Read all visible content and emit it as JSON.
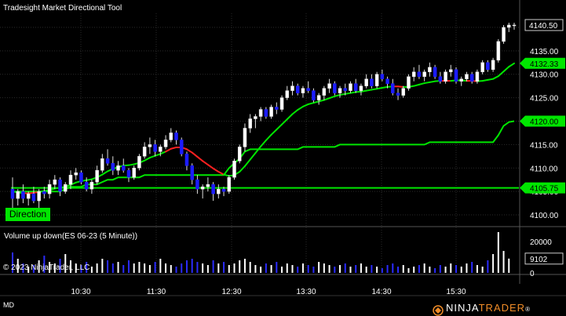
{
  "window": {
    "title": "Tradesight Market Directional Tool",
    "bottom_left": "MD"
  },
  "branding": {
    "copyright": "© 2023 NinjaTrader, LLC",
    "logo_text_1": "NINJA",
    "logo_text_2": "TRADER",
    "logo_suffix": "®"
  },
  "direction_button": {
    "label": "Direction"
  },
  "colors": {
    "background": "#000000",
    "grid": "#2a2a2a",
    "up_candle": "#ffffff",
    "down_candle": "#1c1cff",
    "trend_up": "#00e600",
    "trend_down": "#ff2020",
    "volume_up": "#ffffff",
    "volume_down": "#2b2bff"
  },
  "price_axis": {
    "ticks": [
      "4140.00",
      "4135.00",
      "4130.00",
      "4125.00",
      "4120.00",
      "4115.00",
      "4110.00",
      "4105.00",
      "4100.00"
    ],
    "last_price": "4140.50",
    "markers": [
      {
        "label": "4132.33",
        "value": 4132.33
      },
      {
        "label": "4120.00",
        "value": 4120.0
      },
      {
        "label": "4105.75",
        "value": 4105.75
      }
    ]
  },
  "volume_panel": {
    "title": "Volume up down(ES 06-23 (5 Minute))",
    "ticks": [
      "20000",
      "10000",
      "0"
    ],
    "last_volume": "9102"
  },
  "time_axis": {
    "labels": [
      "10:30",
      "11:30",
      "12:30",
      "13:30",
      "14:30",
      "15:30"
    ]
  },
  "chart_data": {
    "type": "candlestick",
    "instrument": "ES 06-23",
    "interval": "5 Minute",
    "ylim": [
      4098,
      4143
    ],
    "volume_ylim": [
      0,
      27000
    ],
    "time_labels": [
      "10:30",
      "11:30",
      "12:30",
      "13:30",
      "14:30",
      "15:30"
    ],
    "candles": [
      [
        4105.5,
        4108.0,
        4101.5,
        4103.5
      ],
      [
        4103.5,
        4105.5,
        4102.0,
        4105.0
      ],
      [
        4105.0,
        4106.5,
        4102.5,
        4103.5
      ],
      [
        4103.5,
        4105.0,
        4102.0,
        4104.5
      ],
      [
        4104.5,
        4106.0,
        4102.5,
        4103.0
      ],
      [
        4103.0,
        4105.5,
        4101.0,
        4105.0
      ],
      [
        4105.0,
        4106.0,
        4103.5,
        4104.5
      ],
      [
        4104.5,
        4107.5,
        4103.5,
        4106.5
      ],
      [
        4106.5,
        4108.5,
        4105.5,
        4107.5
      ],
      [
        4107.5,
        4108.0,
        4104.0,
        4105.0
      ],
      [
        4105.0,
        4107.0,
        4104.5,
        4106.5
      ],
      [
        4106.5,
        4109.5,
        4105.5,
        4108.5
      ],
      [
        4108.5,
        4110.0,
        4107.5,
        4109.0
      ],
      [
        4109.0,
        4109.5,
        4106.5,
        4107.0
      ],
      [
        4107.0,
        4108.0,
        4105.0,
        4105.5
      ],
      [
        4105.5,
        4107.5,
        4104.5,
        4107.0
      ],
      [
        4107.0,
        4110.5,
        4106.5,
        4109.5
      ],
      [
        4109.5,
        4113.0,
        4109.0,
        4112.0
      ],
      [
        4112.0,
        4114.0,
        4110.5,
        4111.0
      ],
      [
        4111.0,
        4112.5,
        4108.5,
        4109.5
      ],
      [
        4109.5,
        4111.5,
        4108.5,
        4110.5
      ],
      [
        4110.5,
        4112.0,
        4109.0,
        4109.5
      ],
      [
        4109.5,
        4110.0,
        4107.0,
        4108.0
      ],
      [
        4108.0,
        4110.5,
        4107.5,
        4110.0
      ],
      [
        4110.0,
        4113.0,
        4109.5,
        4112.5
      ],
      [
        4112.5,
        4115.5,
        4112.0,
        4114.5
      ],
      [
        4114.5,
        4116.5,
        4113.0,
        4115.0
      ],
      [
        4115.0,
        4116.0,
        4112.5,
        4113.5
      ],
      [
        4113.5,
        4115.0,
        4112.5,
        4114.5
      ],
      [
        4114.5,
        4117.0,
        4114.0,
        4116.0
      ],
      [
        4116.0,
        4118.5,
        4115.5,
        4117.5
      ],
      [
        4117.5,
        4118.0,
        4115.0,
        4116.0
      ],
      [
        4116.0,
        4116.5,
        4112.5,
        4113.0
      ],
      [
        4113.0,
        4113.5,
        4109.5,
        4110.5
      ],
      [
        4110.5,
        4111.0,
        4106.5,
        4107.5
      ],
      [
        4107.5,
        4108.5,
        4104.5,
        4105.5
      ],
      [
        4105.5,
        4106.5,
        4103.5,
        4106.0
      ],
      [
        4106.0,
        4108.0,
        4105.0,
        4106.5
      ],
      [
        4106.5,
        4107.0,
        4103.0,
        4104.5
      ],
      [
        4104.5,
        4106.5,
        4103.5,
        4105.5
      ],
      [
        4105.5,
        4106.0,
        4104.0,
        4105.0
      ],
      [
        4105.0,
        4108.5,
        4104.5,
        4108.0
      ],
      [
        4108.0,
        4112.0,
        4107.5,
        4111.5
      ],
      [
        4111.5,
        4115.0,
        4111.0,
        4114.5
      ],
      [
        4114.5,
        4119.5,
        4113.5,
        4118.5
      ],
      [
        4118.5,
        4121.5,
        4117.5,
        4120.5
      ],
      [
        4120.5,
        4121.5,
        4118.5,
        4121.0
      ],
      [
        4121.0,
        4123.0,
        4120.0,
        4122.5
      ],
      [
        4122.5,
        4123.0,
        4120.5,
        4121.0
      ],
      [
        4121.0,
        4123.5,
        4120.5,
        4123.0
      ],
      [
        4123.0,
        4124.0,
        4121.5,
        4122.5
      ],
      [
        4122.5,
        4125.5,
        4122.0,
        4125.0
      ],
      [
        4125.0,
        4127.5,
        4124.5,
        4126.5
      ],
      [
        4126.5,
        4128.5,
        4125.5,
        4127.5
      ],
      [
        4127.5,
        4128.0,
        4125.5,
        4126.0
      ],
      [
        4126.0,
        4127.5,
        4125.0,
        4127.0
      ],
      [
        4127.0,
        4128.5,
        4126.0,
        4126.5
      ],
      [
        4126.5,
        4127.0,
        4124.0,
        4124.5
      ],
      [
        4124.5,
        4126.0,
        4123.5,
        4125.5
      ],
      [
        4125.5,
        4127.5,
        4124.5,
        4127.0
      ],
      [
        4127.0,
        4129.0,
        4126.0,
        4128.0
      ],
      [
        4128.0,
        4128.5,
        4125.5,
        4126.0
      ],
      [
        4126.0,
        4127.5,
        4125.0,
        4127.0
      ],
      [
        4127.0,
        4128.0,
        4125.5,
        4126.5
      ],
      [
        4126.5,
        4128.5,
        4126.0,
        4128.0
      ],
      [
        4128.0,
        4129.0,
        4126.0,
        4126.5
      ],
      [
        4126.5,
        4128.0,
        4125.5,
        4127.5
      ],
      [
        4127.5,
        4130.0,
        4127.0,
        4129.0
      ],
      [
        4129.0,
        4130.0,
        4127.0,
        4127.5
      ],
      [
        4127.5,
        4130.5,
        4127.0,
        4130.0
      ],
      [
        4130.0,
        4131.0,
        4128.5,
        4129.0
      ],
      [
        4129.0,
        4129.5,
        4127.0,
        4128.0
      ],
      [
        4128.0,
        4129.0,
        4125.5,
        4126.0
      ],
      [
        4126.0,
        4127.0,
        4124.5,
        4125.5
      ],
      [
        4125.5,
        4127.5,
        4125.0,
        4127.0
      ],
      [
        4127.0,
        4130.0,
        4126.5,
        4129.5
      ],
      [
        4129.5,
        4131.5,
        4128.5,
        4130.5
      ],
      [
        4130.5,
        4132.0,
        4129.0,
        4129.5
      ],
      [
        4129.5,
        4131.0,
        4128.5,
        4130.5
      ],
      [
        4130.5,
        4132.5,
        4129.5,
        4131.5
      ],
      [
        4131.5,
        4132.0,
        4129.0,
        4129.5
      ],
      [
        4129.5,
        4130.5,
        4128.0,
        4128.5
      ],
      [
        4128.5,
        4131.0,
        4128.0,
        4130.5
      ],
      [
        4130.5,
        4132.0,
        4129.5,
        4131.0
      ],
      [
        4131.0,
        4131.5,
        4128.0,
        4128.5
      ],
      [
        4128.5,
        4129.5,
        4127.5,
        4129.0
      ],
      [
        4129.0,
        4130.5,
        4128.5,
        4130.0
      ],
      [
        4130.0,
        4130.5,
        4128.0,
        4128.5
      ],
      [
        4128.5,
        4131.0,
        4128.0,
        4130.5
      ],
      [
        4130.5,
        4133.0,
        4130.0,
        4132.5
      ],
      [
        4132.5,
        4133.0,
        4130.5,
        4131.0
      ],
      [
        4131.0,
        4133.5,
        4130.5,
        4133.0
      ],
      [
        4133.0,
        4137.5,
        4132.5,
        4137.0
      ],
      [
        4137.0,
        4140.5,
        4136.5,
        4140.0
      ],
      [
        4140.0,
        4141.0,
        4139.0,
        4140.5
      ],
      [
        4140.5,
        4141.0,
        4139.5,
        4140.5
      ]
    ],
    "volume": [
      13000,
      9000,
      6000,
      4000,
      5000,
      8000,
      11000,
      7000,
      6000,
      9000,
      12000,
      8000,
      6000,
      5000,
      7000,
      4000,
      6000,
      9000,
      8000,
      6000,
      7000,
      5000,
      8000,
      6000,
      7000,
      6000,
      5000,
      7000,
      9000,
      6000,
      5000,
      4000,
      6000,
      8000,
      9000,
      7000,
      6000,
      5000,
      8000,
      6000,
      7000,
      5000,
      6000,
      8000,
      9000,
      7000,
      5000,
      4000,
      6000,
      5000,
      7000,
      4000,
      6000,
      5000,
      4000,
      6000,
      5000,
      4000,
      7000,
      6000,
      5000,
      4000,
      5000,
      6000,
      4000,
      5000,
      6000,
      4000,
      5000,
      4000,
      3000,
      5000,
      6000,
      4000,
      5000,
      3000,
      4000,
      5000,
      6000,
      4000,
      3000,
      5000,
      4000,
      6000,
      5000,
      4000,
      6000,
      7000,
      5000,
      4000,
      8000,
      12000,
      26000,
      14000,
      9102
    ],
    "trend_line": [
      4105.0,
      4104.8,
      4104.6,
      4104.6,
      4104.7,
      4104.9,
      4105.1,
      4105.3,
      4105.6,
      4105.8,
      4106.0,
      4106.4,
      4106.9,
      4107.2,
      4107.4,
      4107.6,
      4108.0,
      4108.6,
      4109.3,
      4109.8,
      4110.2,
      4110.5,
      4110.6,
      4110.8,
      4111.1,
      4111.6,
      4112.2,
      4112.6,
      4113.0,
      4113.5,
      4114.1,
      4114.4,
      4114.4,
      4114.0,
      4113.3,
      4112.4,
      4111.5,
      4110.7,
      4109.9,
      4109.2,
      4108.6,
      4108.3,
      4108.5,
      4109.2,
      4110.4,
      4111.8,
      4113.2,
      4114.6,
      4115.9,
      4117.1,
      4118.2,
      4119.3,
      4120.4,
      4121.5,
      4122.4,
      4123.1,
      4123.6,
      4123.9,
      4124.2,
      4124.5,
      4124.9,
      4125.3,
      4125.6,
      4125.8,
      4126.0,
      4126.2,
      4126.3,
      4126.5,
      4126.7,
      4126.9,
      4127.1,
      4127.3,
      4127.4,
      4127.4,
      4127.3,
      4127.3,
      4127.5,
      4127.8,
      4128.1,
      4128.3,
      4128.5,
      4128.6,
      4128.6,
      4128.6,
      4128.7,
      4128.7,
      4128.6,
      4128.6,
      4128.5,
      4128.6,
      4128.8,
      4129.0,
      4129.6,
      4130.6,
      4131.6,
      4132.33
    ],
    "trend_line_direction": [
      "up",
      "up",
      "up",
      "down",
      "down",
      "down",
      "up",
      "up",
      "up",
      "up",
      "up",
      "up",
      "up",
      "up",
      "up",
      "up",
      "up",
      "up",
      "up",
      "up",
      "up",
      "up",
      "up",
      "up",
      "up",
      "up",
      "up",
      "up",
      "up",
      "up",
      "down",
      "down",
      "down",
      "down",
      "down",
      "down",
      "down",
      "down",
      "down",
      "down",
      "down",
      "up",
      "up",
      "up",
      "up",
      "up",
      "up",
      "up",
      "up",
      "up",
      "up",
      "up",
      "up",
      "up",
      "up",
      "up",
      "up",
      "up",
      "up",
      "up",
      "up",
      "up",
      "up",
      "up",
      "up",
      "up",
      "up",
      "up",
      "up",
      "up",
      "up",
      "up",
      "up",
      "down",
      "down",
      "up",
      "up",
      "up",
      "up",
      "up",
      "up",
      "up",
      "down",
      "down",
      "up",
      "up",
      "up",
      "down",
      "down",
      "up",
      "up",
      "up",
      "up",
      "up",
      "up"
    ],
    "stop_line": [
      4105.0,
      4105.0,
      4105.0,
      4105.0,
      4105.0,
      4105.0,
      4105.0,
      4105.0,
      4105.0,
      4105.0,
      4105.5,
      4106.0,
      4106.0,
      4106.0,
      4106.5,
      4106.5,
      4106.5,
      4107.0,
      4107.5,
      4107.5,
      4108.0,
      4108.0,
      4108.0,
      4108.0,
      4108.0,
      4108.5,
      4108.5,
      4108.5,
      4108.5,
      4108.5,
      4108.5,
      4108.5,
      4108.5,
      4108.5,
      4108.5,
      4108.5,
      4108.5,
      4108.5,
      4108.5,
      4108.5,
      4108.5,
      4110.0,
      4111.0,
      4112.0,
      4113.5,
      4114.0,
      4114.0,
      4114.0,
      4114.0,
      4114.0,
      4114.0,
      4114.0,
      4114.0,
      4114.0,
      4114.0,
      4114.5,
      4114.5,
      4114.5,
      4114.5,
      4114.5,
      4114.5,
      4114.5,
      4115.0,
      4115.0,
      4115.0,
      4115.0,
      4115.0,
      4115.0,
      4115.0,
      4115.0,
      4115.0,
      4115.0,
      4115.0,
      4115.0,
      4115.0,
      4115.0,
      4115.0,
      4115.0,
      4115.0,
      4115.5,
      4115.5,
      4115.5,
      4115.5,
      4115.5,
      4115.5,
      4115.5,
      4115.5,
      4115.5,
      4115.5,
      4115.5,
      4115.5,
      4115.5,
      4117.0,
      4119.0,
      4119.8,
      4120.0
    ],
    "base_line": 4105.75
  }
}
